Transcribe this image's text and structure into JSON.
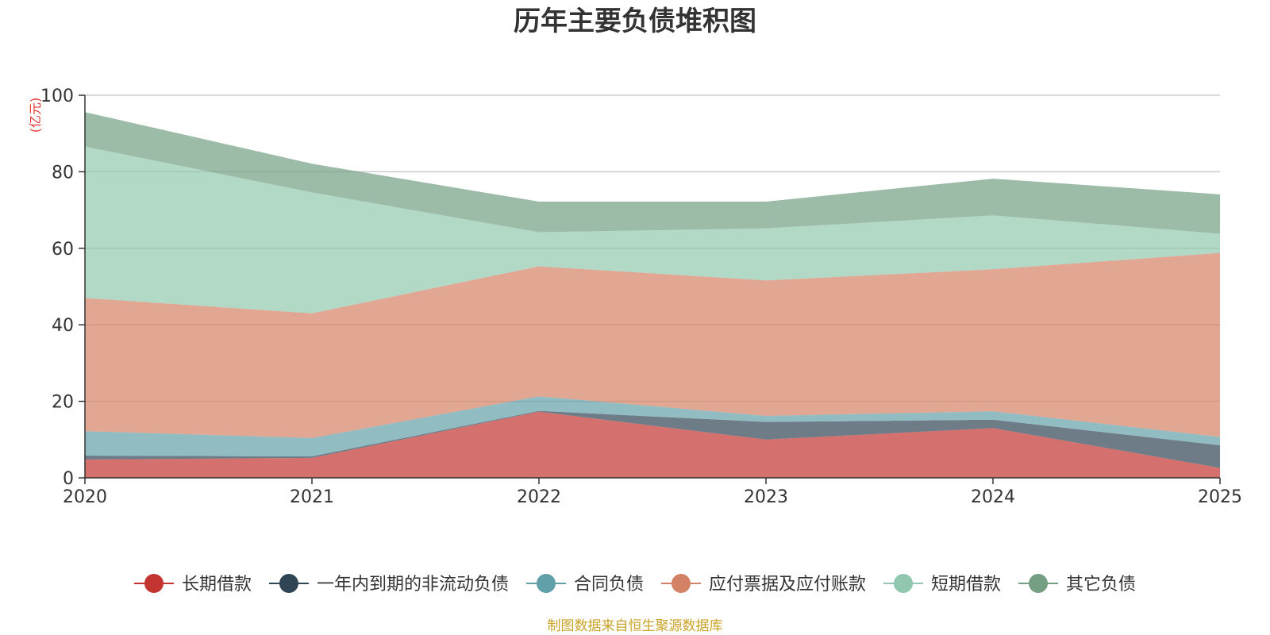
{
  "title": "历年主要负债堆积图",
  "source": "制图数据来自恒生聚源数据库",
  "colors": {
    "长期借款": "#c23531",
    "一年内到期的非流动负债": "#2f4554",
    "合同负债": "#61a0a8",
    "应付票据及应付账款": "#d48265",
    "短期借款": "#91c7ae",
    "其它负债": "#749f83"
  },
  "chart_data": {
    "type": "area",
    "stacked": true,
    "title": "历年主要负债堆积图",
    "ylabel": "(亿元)",
    "xlabel": "",
    "x": [
      "2020",
      "2021",
      "2022",
      "2023",
      "2024",
      "2025"
    ],
    "yticks": [
      "0",
      "20",
      "40",
      "60",
      "80",
      "100"
    ],
    "ylim": [
      0,
      100
    ],
    "grid": true,
    "legend_position": "bottom",
    "series": [
      {
        "name": "长期借款",
        "values": [
          4.8,
          5.2,
          17.3,
          10.0,
          13.0,
          2.6
        ]
      },
      {
        "name": "一年内到期的非流动负债",
        "values": [
          1.0,
          0.4,
          0.2,
          4.6,
          2.2,
          5.9
        ]
      },
      {
        "name": "合同负债",
        "values": [
          6.4,
          4.8,
          3.8,
          1.6,
          2.2,
          2.2
        ]
      },
      {
        "name": "应付票据及应付账款",
        "values": [
          34.8,
          32.6,
          34.0,
          35.4,
          37.1,
          48.1
        ]
      },
      {
        "name": "短期借款",
        "values": [
          39.6,
          31.6,
          8.9,
          13.6,
          14.1,
          5.0
        ]
      },
      {
        "name": "其它负债",
        "values": [
          9.0,
          7.5,
          8.0,
          7.0,
          9.6,
          10.3
        ]
      }
    ]
  }
}
